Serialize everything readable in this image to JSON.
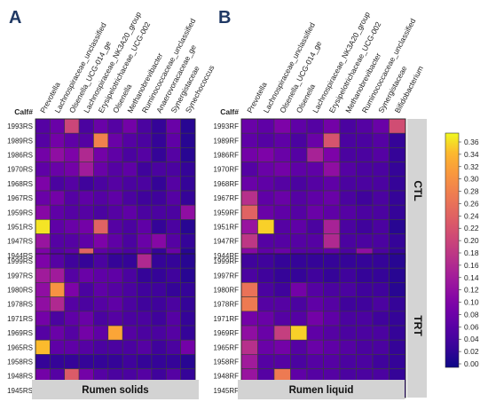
{
  "chart_data": [
    {
      "type": "heatmap",
      "panel_letter": "A",
      "strip_label": "Rumen solids",
      "row_header": "Calf#",
      "columns": [
        "Prevotella",
        "Lachnospiraceae_unclassified",
        "Olsenella_UCG-014_ge",
        "Lachnospiraceae_NK3A20_group",
        "Erysipelotrichaceae_UCG-002",
        "Olsenella",
        "Methanobrevibacter",
        "Ruminococcaceae_unclassified",
        "Anaerovoracaceae_ge",
        "Synergistaceae",
        "Synechococcus"
      ],
      "groups": [
        {
          "label": "CTL",
          "rows": [
            "1993RS",
            "1989RS",
            "1986RS",
            "1970RS",
            "1968RS",
            "1967RS",
            "1959RS",
            "1951RS",
            "1947RS",
            "1944RS"
          ],
          "values": [
            [
              0.06,
              0.08,
              0.2,
              0.05,
              0.08,
              0.06,
              0.09,
              0.05,
              0.03,
              0.08,
              0.02
            ],
            [
              0.06,
              0.09,
              0.07,
              0.06,
              0.28,
              0.08,
              0.06,
              0.05,
              0.03,
              0.07,
              0.02
            ],
            [
              0.09,
              0.12,
              0.1,
              0.16,
              0.09,
              0.07,
              0.05,
              0.06,
              0.03,
              0.06,
              0.02
            ],
            [
              0.07,
              0.08,
              0.09,
              0.14,
              0.08,
              0.06,
              0.07,
              0.04,
              0.05,
              0.05,
              0.03
            ],
            [
              0.1,
              0.05,
              0.06,
              0.04,
              0.05,
              0.06,
              0.05,
              0.05,
              0.03,
              0.06,
              0.03
            ],
            [
              0.08,
              0.09,
              0.06,
              0.07,
              0.06,
              0.07,
              0.05,
              0.04,
              0.04,
              0.06,
              0.03
            ],
            [
              0.11,
              0.07,
              0.06,
              0.06,
              0.05,
              0.06,
              0.07,
              0.05,
              0.05,
              0.05,
              0.12
            ],
            [
              0.36,
              0.07,
              0.08,
              0.09,
              0.24,
              0.06,
              0.05,
              0.07,
              0.03,
              0.05,
              0.02
            ],
            [
              0.13,
              0.06,
              0.06,
              0.07,
              0.1,
              0.07,
              0.05,
              0.08,
              0.11,
              0.06,
              0.03
            ],
            [
              0.1,
              0.06,
              0.07,
              0.24,
              0.07,
              0.06,
              0.05,
              0.07,
              0.03,
              0.08,
              0.02
            ]
          ]
        },
        {
          "label": "TRT",
          "rows": [
            "1999RS",
            "1997RS",
            "1980RS",
            "1978RS",
            "1971RS",
            "1969RS",
            "1965RS",
            "1958RS",
            "1948RS",
            "1945RS"
          ],
          "values": [
            [
              0.1,
              0.06,
              0.04,
              0.03,
              0.05,
              0.03,
              0.03,
              0.16,
              0.03,
              0.03,
              0.02
            ],
            [
              0.14,
              0.14,
              0.06,
              0.08,
              0.07,
              0.07,
              0.05,
              0.03,
              0.03,
              0.04,
              0.02
            ],
            [
              0.12,
              0.3,
              0.1,
              0.05,
              0.07,
              0.06,
              0.05,
              0.04,
              0.04,
              0.03,
              0.03
            ],
            [
              0.12,
              0.16,
              0.06,
              0.05,
              0.06,
              0.07,
              0.05,
              0.04,
              0.04,
              0.05,
              0.03
            ],
            [
              0.09,
              0.05,
              0.07,
              0.08,
              0.05,
              0.06,
              0.05,
              0.05,
              0.04,
              0.06,
              0.03
            ],
            [
              0.06,
              0.08,
              0.06,
              0.09,
              0.07,
              0.32,
              0.06,
              0.05,
              0.05,
              0.06,
              0.03
            ],
            [
              0.34,
              0.07,
              0.07,
              0.06,
              0.05,
              0.05,
              0.05,
              0.06,
              0.04,
              0.05,
              0.09
            ],
            [
              0.03,
              0.03,
              0.03,
              0.03,
              0.03,
              0.03,
              0.04,
              0.03,
              0.03,
              0.03,
              0.02
            ],
            [
              0.09,
              0.06,
              0.23,
              0.09,
              0.06,
              0.05,
              0.05,
              0.06,
              0.04,
              0.06,
              0.03
            ],
            [
              0.07,
              0.06,
              0.07,
              0.07,
              0.12,
              0.08,
              0.07,
              0.12,
              0.04,
              0.05,
              0.03
            ]
          ]
        }
      ]
    },
    {
      "type": "heatmap",
      "panel_letter": "B",
      "strip_label": "Rumen liquid",
      "row_header": "Calf#",
      "columns": [
        "Prevotella",
        "Lachnospiraceae_unclassified",
        "Olsenella_UCG-014_ge",
        "Olsenella",
        "Lachnospiraceae_NK3A20_group",
        "Erysipelotrichaceae_UCG-002",
        "Methanobrevibacter",
        "Ruminococcaceae_unclassified",
        "Synergistaceae",
        "Bifidobacterium"
      ],
      "groups": [
        {
          "label": "CTL",
          "rows": [
            "1993RF",
            "1989RF",
            "1986RF",
            "1970RF",
            "1968RF",
            "1967RF",
            "1959RF",
            "1951RF",
            "1947RF",
            "1944RF"
          ],
          "values": [
            [
              0.08,
              0.07,
              0.1,
              0.07,
              0.06,
              0.09,
              0.05,
              0.06,
              0.08,
              0.21
            ],
            [
              0.07,
              0.06,
              0.07,
              0.05,
              0.08,
              0.22,
              0.05,
              0.05,
              0.06,
              0.03
            ],
            [
              0.09,
              0.1,
              0.08,
              0.06,
              0.15,
              0.1,
              0.05,
              0.05,
              0.06,
              0.03
            ],
            [
              0.06,
              0.08,
              0.09,
              0.07,
              0.07,
              0.12,
              0.06,
              0.05,
              0.05,
              0.03
            ],
            [
              0.08,
              0.07,
              0.06,
              0.05,
              0.06,
              0.07,
              0.05,
              0.05,
              0.05,
              0.03
            ],
            [
              0.17,
              0.07,
              0.08,
              0.06,
              0.07,
              0.08,
              0.05,
              0.04,
              0.05,
              0.03
            ],
            [
              0.24,
              0.08,
              0.07,
              0.06,
              0.08,
              0.07,
              0.06,
              0.05,
              0.05,
              0.03
            ],
            [
              0.13,
              0.35,
              0.06,
              0.07,
              0.05,
              0.15,
              0.05,
              0.04,
              0.05,
              0.02
            ],
            [
              0.18,
              0.06,
              0.06,
              0.06,
              0.06,
              0.16,
              0.05,
              0.05,
              0.05,
              0.03
            ],
            [
              0.11,
              0.07,
              0.08,
              0.06,
              0.06,
              0.07,
              0.05,
              0.12,
              0.05,
              0.03
            ]
          ]
        },
        {
          "label": "TRT",
          "rows": [
            "1999RF",
            "1997RF",
            "1980RF",
            "1978RF",
            "1971RF",
            "1969RF",
            "1965RF",
            "1958RF",
            "1948RF",
            "1945RF"
          ],
          "values": [
            [
              0.04,
              0.04,
              0.03,
              0.03,
              0.03,
              0.03,
              0.03,
              0.03,
              0.03,
              0.02
            ],
            [
              0.05,
              0.04,
              0.03,
              0.03,
              0.04,
              0.03,
              0.04,
              0.03,
              0.03,
              0.02
            ],
            [
              0.26,
              0.05,
              0.04,
              0.09,
              0.06,
              0.05,
              0.05,
              0.04,
              0.04,
              0.02
            ],
            [
              0.27,
              0.06,
              0.06,
              0.05,
              0.07,
              0.06,
              0.04,
              0.04,
              0.05,
              0.03
            ],
            [
              0.09,
              0.08,
              0.06,
              0.06,
              0.09,
              0.07,
              0.05,
              0.05,
              0.04,
              0.03
            ],
            [
              0.12,
              0.08,
              0.19,
              0.35,
              0.07,
              0.06,
              0.05,
              0.05,
              0.05,
              0.03
            ],
            [
              0.17,
              0.08,
              0.09,
              0.06,
              0.08,
              0.07,
              0.06,
              0.05,
              0.05,
              0.03
            ],
            [
              0.14,
              0.06,
              0.06,
              0.05,
              0.06,
              0.06,
              0.05,
              0.05,
              0.04,
              0.03
            ],
            [
              0.13,
              0.06,
              0.27,
              0.07,
              0.06,
              0.06,
              0.05,
              0.05,
              0.05,
              0.03
            ],
            [
              0.09,
              0.08,
              0.06,
              0.06,
              0.18,
              0.06,
              0.05,
              0.08,
              0.05,
              0.03
            ]
          ]
        }
      ]
    }
  ],
  "colorbar": {
    "ticks": [
      "0.36",
      "0.34",
      "0.32",
      "0.30",
      "0.28",
      "0.26",
      "0.24",
      "0.22",
      "0.20",
      "0.18",
      "0.16",
      "0.14",
      "0.12",
      "0.10",
      "0.08",
      "0.06",
      "0.04",
      "0.02",
      "0.00"
    ],
    "min": 0,
    "max": 0.37
  },
  "colors": {
    "colormap": [
      "#0d0887",
      "#3a049a",
      "#5c01a6",
      "#7e03a8",
      "#9c179e",
      "#b52f8c",
      "#cc4778",
      "#de5f65",
      "#ed7953",
      "#f89540",
      "#fdb42f",
      "#f0f921"
    ],
    "group_strip": "#d4d4d4",
    "panel_strip": "#d3d3d3",
    "panel_letter": "#1f3864",
    "cell_border": "#3c3c3c"
  }
}
